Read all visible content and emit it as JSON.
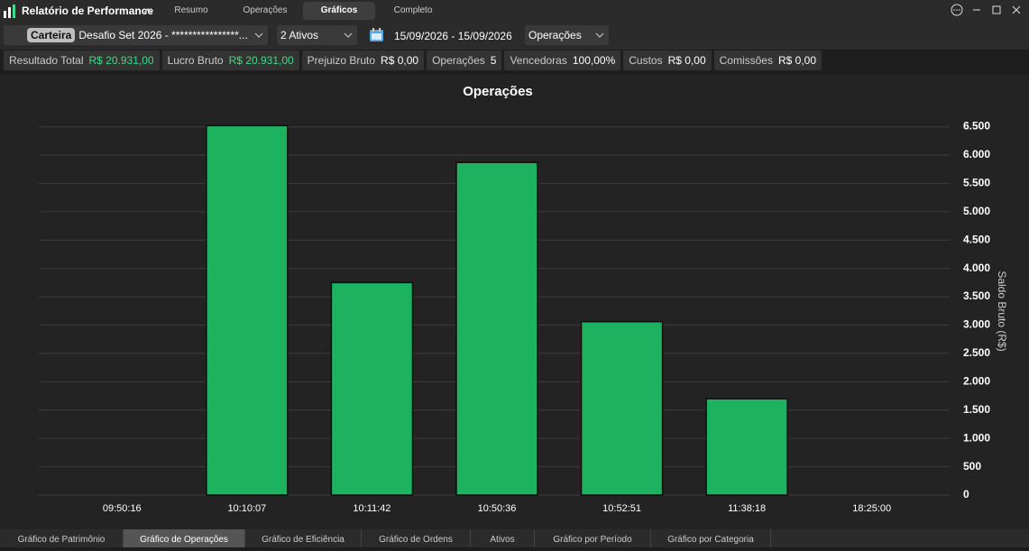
{
  "header": {
    "title": "Relatório de Performance",
    "tabs": [
      "Resumo",
      "Operações",
      "Gráficos",
      "Completo"
    ],
    "active_tab": 2
  },
  "toolbar": {
    "portfolio_label": "Carteira",
    "portfolio": "Desafio Set 2026 - ****************...",
    "assets": "2 Ativos",
    "date_range": "15/09/2026 - 15/09/2026",
    "view": "Operações"
  },
  "stats": [
    {
      "label": "Resultado Total",
      "value": "R$ 20.931,00"
    },
    {
      "label": "Lucro Bruto",
      "value": "R$ 20.931,00"
    },
    {
      "label": "Prejuizo Bruto",
      "value": "R$ 0,00"
    },
    {
      "label": "Operações",
      "value": "5"
    },
    {
      "label": "Vencedoras",
      "value": "100,00%"
    },
    {
      "label": "Custos",
      "value": "R$ 0,00"
    },
    {
      "label": "Comissões",
      "value": "R$ 0,00"
    }
  ],
  "chart_data": {
    "type": "bar",
    "title": "Operações",
    "y_label": "Saldo Bruto (R$)",
    "categories": [
      "09:50:16",
      "10:10:07",
      "10:11:42",
      "10:50:36",
      "10:52:51",
      "11:38:18",
      "18:25:00"
    ],
    "values": [
      null,
      6520,
      3750,
      5870,
      3060,
      1700,
      null
    ],
    "color": "#1db260",
    "ylim": [
      0,
      6700
    ],
    "yticks": [
      0,
      500,
      {
        "value": 1000,
        "label": "1.000"
      },
      {
        "value": 1500,
        "label": "1.500"
      },
      {
        "value": 2000,
        "label": "2.000"
      },
      {
        "value": 2500,
        "label": "2.500"
      },
      {
        "value": 3000,
        "label": "3.000"
      },
      {
        "value": 3500,
        "label": "3.500"
      },
      {
        "value": 4000,
        "label": "4.000"
      },
      {
        "value": 4500,
        "label": "4.500"
      },
      {
        "value": 5000,
        "label": "5.000"
      },
      {
        "value": 5500,
        "label": "5.500"
      },
      {
        "value": 6000,
        "label": "6.000"
      },
      {
        "value": 6500,
        "label": "6.500"
      }
    ],
    "grid": true
  },
  "bottom_tabs": {
    "tabs": [
      "Gráfico de Patrimônio",
      "Gráfico de Operações",
      "Gráfico de Eficiência",
      "Gráfico de Ordens",
      "Ativos",
      "Gráfico por Período",
      "Gráfico por Categoria"
    ],
    "active_tab": 1
  }
}
